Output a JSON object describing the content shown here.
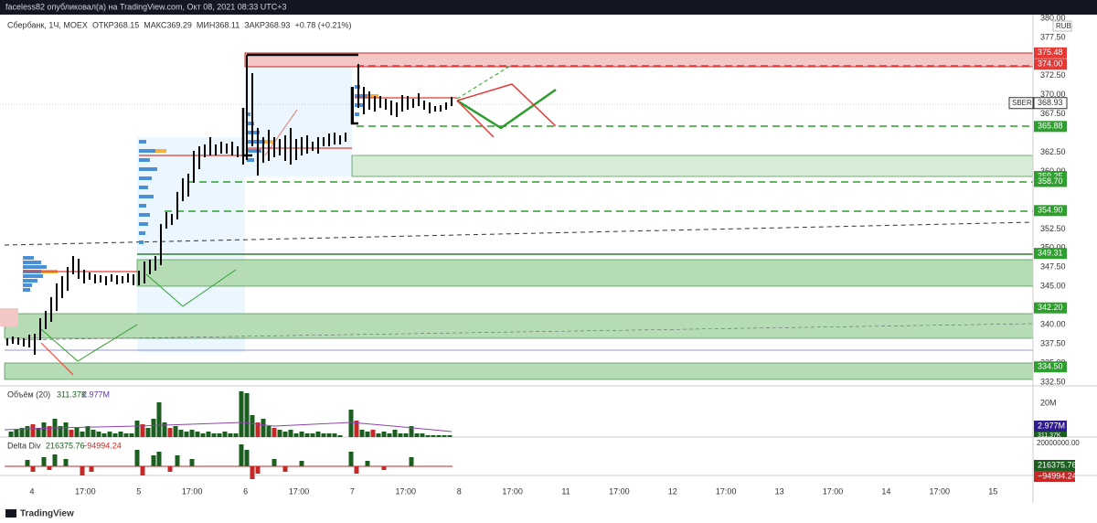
{
  "top_bar": {
    "text": "faceless82 опубликовал(а) на TradingView.com, Окт 08, 2021 08:33 UTC+3"
  },
  "main_pane": {
    "symbol": "Сбербанк, 1Ч, MOEX",
    "open": "ОТКР368.15",
    "high": "МАКС369.29",
    "low": "МИН368.11",
    "close": "ЗАКР368.93",
    "change": "+0.78 (+0.21%)",
    "currency": "RUB",
    "price_ticks": [
      "380.00",
      "377.50",
      "372.50",
      "370.00",
      "367.50",
      "362.50",
      "360.00",
      "352.50",
      "350.00",
      "347.50",
      "345.00",
      "340.00",
      "337.50",
      "335.00",
      "332.50"
    ],
    "price_tags": [
      {
        "label": "375.48",
        "kind": "red"
      },
      {
        "label": "374.00",
        "kind": "red"
      },
      {
        "label": "365.88",
        "kind": "green"
      },
      {
        "label": "359.35",
        "kind": "green"
      },
      {
        "label": "358.70",
        "kind": "green"
      },
      {
        "label": "354.90",
        "kind": "green"
      },
      {
        "label": "349.31",
        "kind": "green"
      },
      {
        "label": "342.20",
        "kind": "green"
      },
      {
        "label": "334.50",
        "kind": "green"
      }
    ],
    "last_price": {
      "symbol": "SBER",
      "label": "368.93"
    }
  },
  "volume_pane": {
    "title": "Объём (20)",
    "value1": "311.37K",
    "value2": "2.977M",
    "tick": "20M",
    "tag1": "2.977M",
    "tag2": "311.37K"
  },
  "delta_pane": {
    "title": "Delta Div",
    "value1": "216375.76",
    "value2": "−94994.24",
    "tick": "20000000.00",
    "tag1": "216375.76",
    "tag2": "−94994.24"
  },
  "time_axis": [
    "4",
    "17:00",
    "5",
    "17:00",
    "6",
    "17:00",
    "7",
    "17:00",
    "8",
    "17:00",
    "11",
    "17:00",
    "12",
    "17:00",
    "13",
    "17:00",
    "14",
    "17:00",
    "15"
  ],
  "footer": {
    "brand": "TradingView"
  }
}
